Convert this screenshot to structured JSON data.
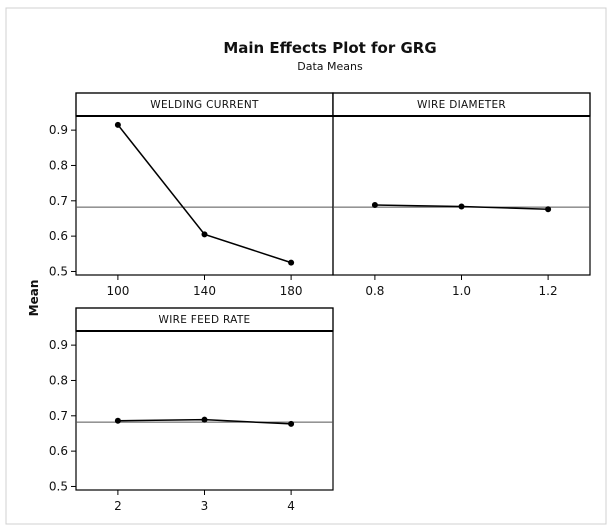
{
  "chart_data": {
    "type": "line",
    "title": "Main Effects Plot for GRG",
    "subtitle": "Data Means",
    "ylabel": "Mean",
    "ylim": [
      0.49,
      0.94
    ],
    "yticks": [
      0.5,
      0.6,
      0.7,
      0.8,
      0.9
    ],
    "ytick_labels": [
      "0.5",
      "0.6",
      "0.7",
      "0.8",
      "0.9"
    ],
    "reference_mean": 0.682,
    "line_color": "#000000",
    "panels": [
      {
        "name": "WELDING CURRENT",
        "categories": [
          "100",
          "140",
          "180"
        ],
        "values": [
          0.915,
          0.605,
          0.525
        ]
      },
      {
        "name": "WIRE DIAMETER",
        "categories": [
          "0.8",
          "1.0",
          "1.2"
        ],
        "values": [
          0.688,
          0.684,
          0.676
        ]
      },
      {
        "name": "WIRE FEED RATE",
        "categories": [
          "2",
          "3",
          "4"
        ],
        "values": [
          0.686,
          0.689,
          0.677
        ]
      }
    ]
  }
}
